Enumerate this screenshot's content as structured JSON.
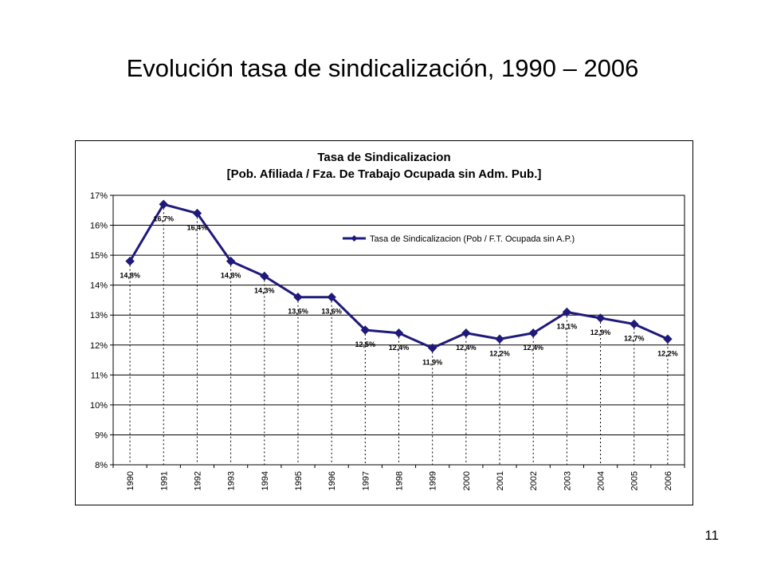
{
  "slide": {
    "title": "Evolución tasa de sindicalización, 1990 – 2006",
    "page_number": "11"
  },
  "chart_data": {
    "type": "line",
    "title": "Tasa de Sindicalizacion",
    "subtitle": "[Pob. Afiliada / Fza. De Trabajo Ocupada sin Adm. Pub.]",
    "xlabel": "",
    "ylabel": "",
    "ylim": [
      8,
      17
    ],
    "y_unit": "%",
    "y_ticks": [
      "8%",
      "9%",
      "10%",
      "11%",
      "12%",
      "13%",
      "14%",
      "15%",
      "16%",
      "17%"
    ],
    "grid": true,
    "legend_position": "top-right",
    "categories": [
      "1990",
      "1991",
      "1992",
      "1993",
      "1994",
      "1995",
      "1996",
      "1997",
      "1998",
      "1999",
      "2000",
      "2001",
      "2002",
      "2003",
      "2004",
      "2005",
      "2006"
    ],
    "series": [
      {
        "name": "Tasa de Sindicalizacion (Pob / F.T. Ocupada sin A.P.)",
        "color": "#1f1a7a",
        "values": [
          14.8,
          16.7,
          16.4,
          14.8,
          14.3,
          13.6,
          13.6,
          12.5,
          12.4,
          11.9,
          12.4,
          12.2,
          12.4,
          13.1,
          12.9,
          12.7,
          12.2
        ],
        "labels": [
          "14,8%",
          "16,7%",
          "16,4%",
          "14,8%",
          "14,3%",
          "13,6%",
          "13,6%",
          "12,5%",
          "12,4%",
          "11,9%",
          "12,4%",
          "12,2%",
          "12,4%",
          "13,1%",
          "12,9%",
          "12,7%",
          "12,2%"
        ]
      }
    ]
  }
}
